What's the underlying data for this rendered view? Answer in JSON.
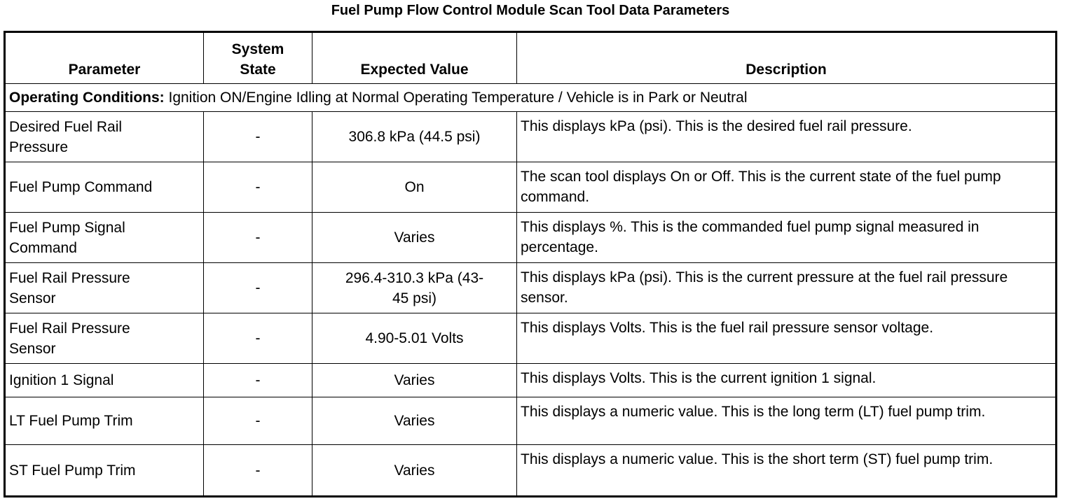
{
  "title": "Fuel Pump Flow Control Module Scan Tool Data Parameters",
  "headers": [
    "Parameter",
    "System State",
    "Expected Value",
    "Description"
  ],
  "conditions": {
    "label": "Operating Conditions:",
    "text": " Ignition ON/Engine Idling at Normal Operating Temperature / Vehicle is in Park or Neutral"
  },
  "rows": [
    {
      "parameter": "Desired Fuel Rail Pressure",
      "state": "-",
      "expected": "306.8 kPa (44.5 psi)",
      "description": "This displays kPa (psi). This is the desired fuel rail pressure."
    },
    {
      "parameter": "Fuel Pump Command",
      "state": "-",
      "expected": "On",
      "description": "The scan tool displays On or Off. This is the current state of the fuel pump command."
    },
    {
      "parameter": "Fuel Pump Signal Command",
      "state": "-",
      "expected": "Varies",
      "description": "This displays %. This is the commanded fuel pump signal measured in percentage."
    },
    {
      "parameter": "Fuel Rail Pressure Sensor",
      "state": "-",
      "expected": "296.4-310.3 kPa (43-45 psi)",
      "description": "This displays kPa (psi). This is the current pressure at the fuel rail pressure sensor."
    },
    {
      "parameter": "Fuel Rail Pressure Sensor",
      "state": "-",
      "expected": "4.90-5.01 Volts",
      "description": "This displays Volts. This is the fuel rail pressure sensor voltage."
    },
    {
      "parameter": "Ignition 1 Signal",
      "state": "-",
      "expected": "Varies",
      "description": "This displays Volts. This is the current ignition 1 signal."
    },
    {
      "parameter": "LT Fuel Pump Trim",
      "state": "-",
      "expected": "Varies",
      "description": "This displays a numeric value. This is the long term (LT) fuel pump trim."
    },
    {
      "parameter": "ST Fuel Pump Trim",
      "state": "-",
      "expected": "Varies",
      "description": "This displays a numeric value. This is the short term (ST) fuel pump trim."
    }
  ]
}
